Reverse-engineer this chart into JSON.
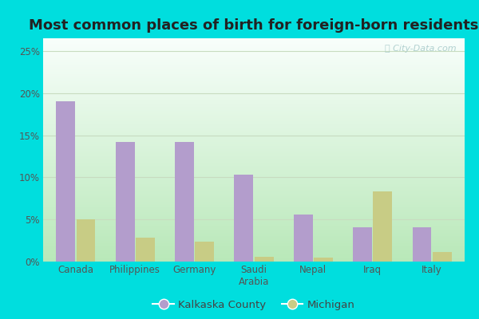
{
  "title": "Most common places of birth for foreign-born residents",
  "categories": [
    "Canada",
    "Philippines",
    "Germany",
    "Saudi\nArabia",
    "Nepal",
    "Iraq",
    "Italy"
  ],
  "kalkaska_values": [
    0.19,
    0.142,
    0.142,
    0.103,
    0.056,
    0.041,
    0.041
  ],
  "michigan_values": [
    0.05,
    0.028,
    0.024,
    0.006,
    0.005,
    0.083,
    0.011
  ],
  "kalkaska_color": "#b39dcc",
  "michigan_color": "#c8cc85",
  "bar_width": 0.32,
  "ylim": [
    0,
    0.265
  ],
  "yticks": [
    0.0,
    0.05,
    0.1,
    0.15,
    0.2,
    0.25
  ],
  "ytick_labels": [
    "0%",
    "5%",
    "10%",
    "15%",
    "20%",
    "25%"
  ],
  "legend_labels": [
    "Kalkaska County",
    "Michigan"
  ],
  "background_outer": "#00dede",
  "grid_color": "#c8dcc0",
  "watermark": "ⓘ City-Data.com",
  "title_fontsize": 13,
  "tick_fontsize": 8.5,
  "legend_fontsize": 9.5
}
